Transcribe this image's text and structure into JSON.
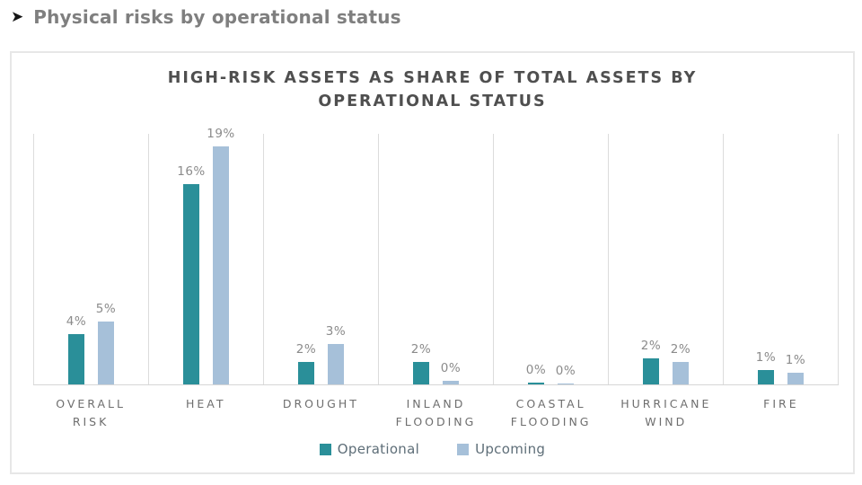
{
  "header": {
    "title": "Physical risks by operational status",
    "arrow_icon": "➤"
  },
  "chart_data": {
    "type": "bar",
    "title": "HIGH-RISK ASSETS AS SHARE OF TOTAL ASSETS BY OPERATIONAL STATUS",
    "unit": "%",
    "categories": [
      "OVERALL RISK",
      "HEAT",
      "DROUGHT",
      "INLAND FLOODING",
      "COASTAL FLOODING",
      "HURRICANE WIND",
      "FIRE"
    ],
    "category_label_lines": [
      [
        "OVERALL",
        "RISK"
      ],
      [
        "HEAT"
      ],
      [
        "DROUGHT"
      ],
      [
        "INLAND",
        "FLOODING"
      ],
      [
        "COASTAL",
        "FLOODING"
      ],
      [
        "HURRICANE",
        "WIND"
      ],
      [
        "FIRE"
      ]
    ],
    "series": [
      {
        "name": "Operational",
        "color": "#2a8f99",
        "values": [
          4,
          16,
          2,
          2,
          0,
          2,
          1
        ],
        "labels": [
          "4%",
          "16%",
          "2%",
          "2%",
          "0%",
          "2%",
          "1%"
        ],
        "bar_heights_pct": [
          4,
          16,
          1.8,
          1.8,
          0.15,
          2.05,
          1.15
        ]
      },
      {
        "name": "Upcoming",
        "color": "#a6c0d9",
        "values": [
          5,
          19,
          3,
          0,
          0,
          2,
          1
        ],
        "labels": [
          "5%",
          "19%",
          "3%",
          "0%",
          "0%",
          "2%",
          "1%"
        ],
        "bar_heights_pct": [
          5,
          19,
          3.2,
          0.3,
          0.05,
          1.8,
          0.95
        ]
      }
    ],
    "ylim": [
      0,
      20
    ],
    "legend_position": "bottom",
    "gridlines": "vertical category separators and baseline"
  }
}
